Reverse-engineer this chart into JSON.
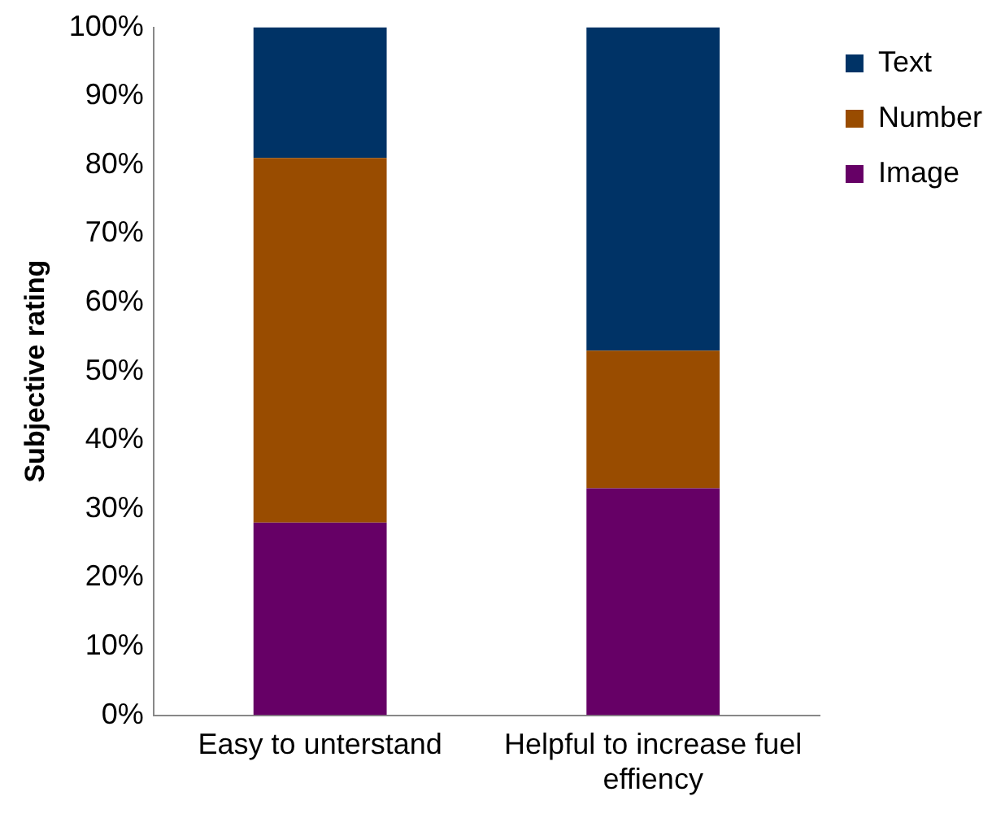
{
  "chart_data": {
    "type": "bar",
    "stacked": true,
    "ylabel": "Subjective rating",
    "categories": [
      "Easy to unterstand",
      "Helpful to increase fuel effiency"
    ],
    "series": [
      {
        "name": "Image",
        "color": "#660066",
        "values": [
          28,
          33
        ]
      },
      {
        "name": "Number",
        "color": "#994c00",
        "values": [
          53,
          20
        ]
      },
      {
        "name": "Text",
        "color": "#003366",
        "values": [
          19,
          47
        ]
      }
    ],
    "ylim": [
      0,
      100
    ],
    "yticks": [
      {
        "value": 0,
        "label": "0%"
      },
      {
        "value": 10,
        "label": "10%"
      },
      {
        "value": 20,
        "label": "20%"
      },
      {
        "value": 30,
        "label": "30%"
      },
      {
        "value": 40,
        "label": "40%"
      },
      {
        "value": 50,
        "label": "50%"
      },
      {
        "value": 60,
        "label": "60%"
      },
      {
        "value": 70,
        "label": "70%"
      },
      {
        "value": 80,
        "label": "80%"
      },
      {
        "value": 90,
        "label": "90%"
      },
      {
        "value": 100,
        "label": "100%"
      }
    ],
    "grid": false,
    "legend": "top right"
  }
}
